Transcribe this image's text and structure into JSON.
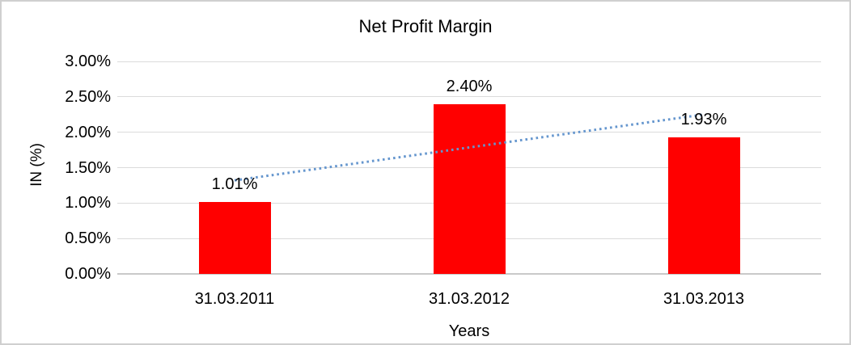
{
  "chart_data": {
    "type": "bar",
    "title": "Net Profit Margin",
    "xlabel": "Years",
    "ylabel": "IN (%)",
    "categories": [
      "31.03.2011",
      "31.03.2012",
      "31.03.2013"
    ],
    "values": [
      1.01,
      2.4,
      1.93
    ],
    "data_labels": [
      "1.01%",
      "2.40%",
      "1.93%"
    ],
    "ylim": [
      0,
      3
    ],
    "yticks": [
      {
        "value": 0,
        "label": "0.00%"
      },
      {
        "value": 0.5,
        "label": "0.50%"
      },
      {
        "value": 1,
        "label": "1.00%"
      },
      {
        "value": 1.5,
        "label": "1.50%"
      },
      {
        "value": 2,
        "label": "2.00%"
      },
      {
        "value": 2.5,
        "label": "2.50%"
      },
      {
        "value": 3,
        "label": "3.00%"
      }
    ],
    "grid": true,
    "legend": "none",
    "bar_color": "#FF0000",
    "gridline_color": "#DBDBDB",
    "axis_line_color": "#C9C9C9",
    "trendline": {
      "type": "linear",
      "style": "dotted",
      "color": "#6596CE",
      "start_value": 1.32,
      "end_value": 2.25
    }
  }
}
